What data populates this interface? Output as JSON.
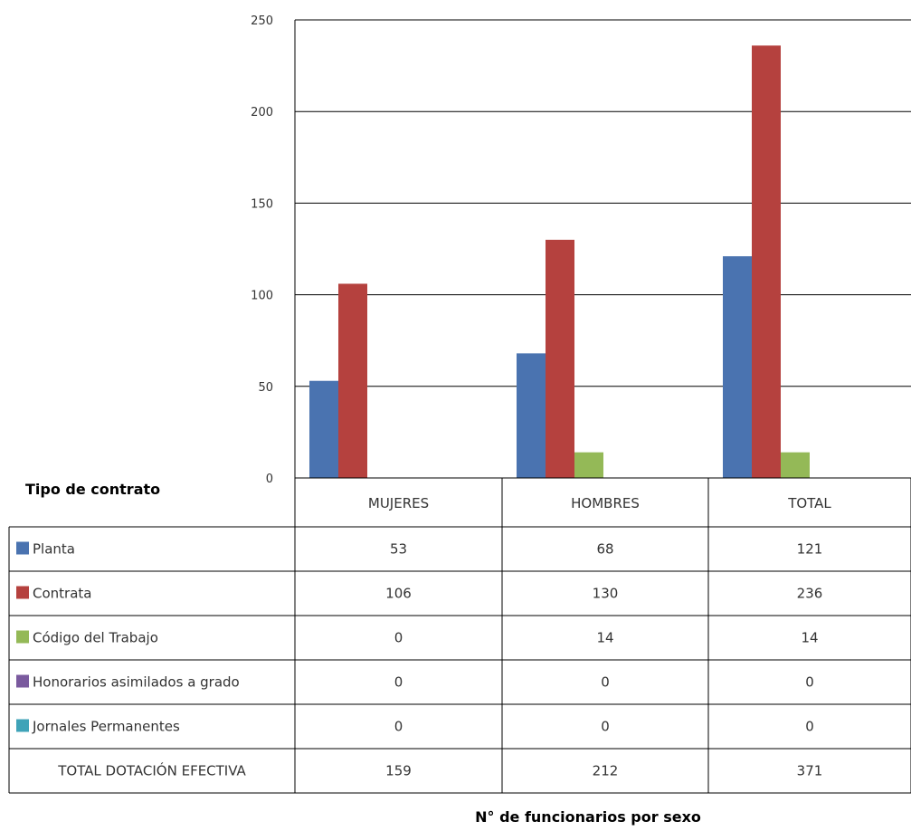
{
  "chart_data": {
    "type": "bar",
    "categories": [
      "MUJERES",
      "HOMBRES",
      "TOTAL"
    ],
    "series": [
      {
        "name": "Planta",
        "values": [
          53,
          68,
          121
        ],
        "color": "#4a73b0"
      },
      {
        "name": "Contrata",
        "values": [
          106,
          130,
          236
        ],
        "color": "#b5413e"
      },
      {
        "name": "Código del Trabajo",
        "values": [
          0,
          14,
          14
        ],
        "color": "#94b957"
      },
      {
        "name": "Honorarios asimilados a grado",
        "values": [
          0,
          0,
          0
        ],
        "color": "#7a5a9e"
      },
      {
        "name": "Jornales Permanentes",
        "values": [
          0,
          0,
          0
        ],
        "color": "#3fa3b8"
      }
    ],
    "total_row": {
      "label": "TOTAL DOTACIÓN EFECTIVA",
      "values": [
        159,
        212,
        371
      ]
    },
    "yticks": [
      0,
      50,
      100,
      150,
      200,
      250
    ],
    "ylim": [
      0,
      250
    ],
    "grid": true,
    "legend_title": "Tipo de contrato",
    "caption": "N° de funcionarios por sexo"
  }
}
